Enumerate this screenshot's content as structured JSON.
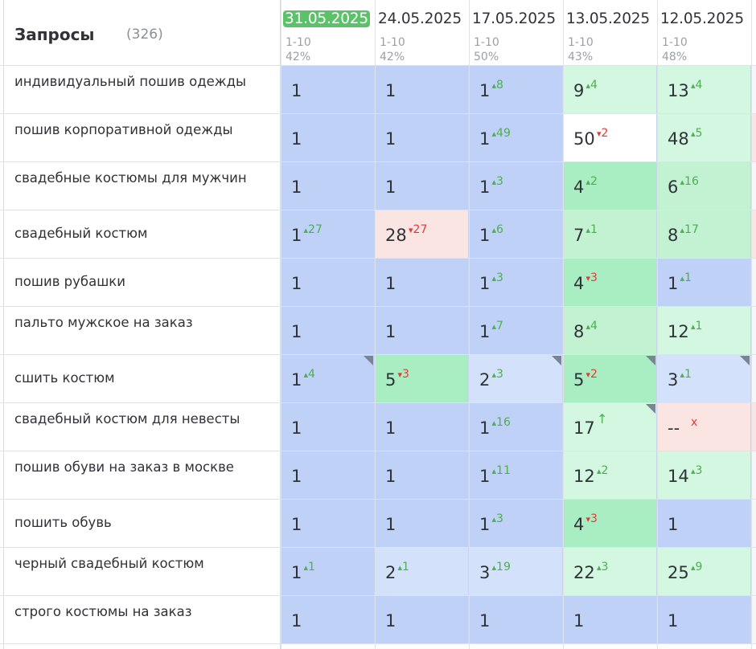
{
  "header": {
    "title": "Запросы",
    "count": "(326)",
    "columns": [
      {
        "date": "31.05.2025",
        "range": "1-10",
        "pct": "42%",
        "active": true
      },
      {
        "date": "24.05.2025",
        "range": "1-10",
        "pct": "42%",
        "active": false
      },
      {
        "date": "17.05.2025",
        "range": "1-10",
        "pct": "50%",
        "active": false
      },
      {
        "date": "13.05.2025",
        "range": "1-10",
        "pct": "43%",
        "active": false
      },
      {
        "date": "12.05.2025",
        "range": "1-10",
        "pct": "48%",
        "active": false
      }
    ]
  },
  "rows": [
    {
      "query": "индивидуальный пошив одежды",
      "cells": [
        {
          "pos": "1",
          "delta": "",
          "dir": "",
          "color": "blue"
        },
        {
          "pos": "1",
          "delta": "",
          "dir": "",
          "color": "blue"
        },
        {
          "pos": "1",
          "delta": "8",
          "dir": "up",
          "color": "blue"
        },
        {
          "pos": "9",
          "delta": "4",
          "dir": "up",
          "color": "lgreen"
        },
        {
          "pos": "13",
          "delta": "4",
          "dir": "up",
          "color": "lgreen"
        }
      ]
    },
    {
      "query": "пошив корпоративной одежды",
      "cells": [
        {
          "pos": "1",
          "delta": "",
          "dir": "",
          "color": "blue"
        },
        {
          "pos": "1",
          "delta": "",
          "dir": "",
          "color": "blue"
        },
        {
          "pos": "1",
          "delta": "49",
          "dir": "up",
          "color": "blue"
        },
        {
          "pos": "50",
          "delta": "2",
          "dir": "down",
          "color": "white"
        },
        {
          "pos": "48",
          "delta": "5",
          "dir": "up",
          "color": "lgreen"
        }
      ]
    },
    {
      "query": "свадебные костюмы для мужчин",
      "cells": [
        {
          "pos": "1",
          "delta": "",
          "dir": "",
          "color": "blue"
        },
        {
          "pos": "1",
          "delta": "",
          "dir": "",
          "color": "blue"
        },
        {
          "pos": "1",
          "delta": "3",
          "dir": "up",
          "color": "blue"
        },
        {
          "pos": "4",
          "delta": "2",
          "dir": "up",
          "color": "green"
        },
        {
          "pos": "6",
          "delta": "16",
          "dir": "up",
          "color": "mgreen"
        }
      ]
    },
    {
      "query": "свадебный костюм",
      "cells": [
        {
          "pos": "1",
          "delta": "27",
          "dir": "up",
          "color": "blue"
        },
        {
          "pos": "28",
          "delta": "27",
          "dir": "down",
          "color": "pink"
        },
        {
          "pos": "1",
          "delta": "6",
          "dir": "up",
          "color": "blue"
        },
        {
          "pos": "7",
          "delta": "1",
          "dir": "up",
          "color": "mgreen"
        },
        {
          "pos": "8",
          "delta": "17",
          "dir": "up",
          "color": "mgreen"
        }
      ]
    },
    {
      "query": "пошив рубашки",
      "cells": [
        {
          "pos": "1",
          "delta": "",
          "dir": "",
          "color": "blue"
        },
        {
          "pos": "1",
          "delta": "",
          "dir": "",
          "color": "blue"
        },
        {
          "pos": "1",
          "delta": "3",
          "dir": "up",
          "color": "blue"
        },
        {
          "pos": "4",
          "delta": "3",
          "dir": "down",
          "color": "green"
        },
        {
          "pos": "1",
          "delta": "1",
          "dir": "up",
          "color": "blue"
        }
      ]
    },
    {
      "query": "пальто мужское на заказ",
      "cells": [
        {
          "pos": "1",
          "delta": "",
          "dir": "",
          "color": "blue"
        },
        {
          "pos": "1",
          "delta": "",
          "dir": "",
          "color": "blue"
        },
        {
          "pos": "1",
          "delta": "7",
          "dir": "up",
          "color": "blue"
        },
        {
          "pos": "8",
          "delta": "4",
          "dir": "up",
          "color": "mgreen"
        },
        {
          "pos": "12",
          "delta": "1",
          "dir": "up",
          "color": "lgreen"
        }
      ]
    },
    {
      "query": "сшить костюм",
      "cells": [
        {
          "pos": "1",
          "delta": "4",
          "dir": "up",
          "color": "blue",
          "note": true
        },
        {
          "pos": "5",
          "delta": "3",
          "dir": "down",
          "color": "green"
        },
        {
          "pos": "2",
          "delta": "3",
          "dir": "up",
          "color": "lblue",
          "note": true
        },
        {
          "pos": "5",
          "delta": "2",
          "dir": "down",
          "color": "green",
          "note": true
        },
        {
          "pos": "3",
          "delta": "1",
          "dir": "up",
          "color": "lblue",
          "note": true
        }
      ]
    },
    {
      "query": "свадебный костюм для невесты",
      "cells": [
        {
          "pos": "1",
          "delta": "",
          "dir": "",
          "color": "blue"
        },
        {
          "pos": "1",
          "delta": "",
          "dir": "",
          "color": "blue"
        },
        {
          "pos": "1",
          "delta": "16",
          "dir": "up",
          "color": "blue"
        },
        {
          "pos": "17",
          "delta": "↑",
          "dir": "up",
          "color": "lgreen",
          "note": true
        },
        {
          "pos": "--",
          "delta": "x",
          "dir": "x",
          "color": "pink"
        }
      ]
    },
    {
      "query": "пошив обуви на заказ в москве",
      "cells": [
        {
          "pos": "1",
          "delta": "",
          "dir": "",
          "color": "blue"
        },
        {
          "pos": "1",
          "delta": "",
          "dir": "",
          "color": "blue"
        },
        {
          "pos": "1",
          "delta": "11",
          "dir": "up",
          "color": "blue"
        },
        {
          "pos": "12",
          "delta": "2",
          "dir": "up",
          "color": "lgreen"
        },
        {
          "pos": "14",
          "delta": "3",
          "dir": "up",
          "color": "lgreen"
        }
      ]
    },
    {
      "query": "пошить обувь",
      "cells": [
        {
          "pos": "1",
          "delta": "",
          "dir": "",
          "color": "blue"
        },
        {
          "pos": "1",
          "delta": "",
          "dir": "",
          "color": "blue"
        },
        {
          "pos": "1",
          "delta": "3",
          "dir": "up",
          "color": "blue"
        },
        {
          "pos": "4",
          "delta": "3",
          "dir": "down",
          "color": "green"
        },
        {
          "pos": "1",
          "delta": "",
          "dir": "",
          "color": "blue"
        }
      ]
    },
    {
      "query": "черный свадебный костюм",
      "cells": [
        {
          "pos": "1",
          "delta": "1",
          "dir": "up",
          "color": "blue"
        },
        {
          "pos": "2",
          "delta": "1",
          "dir": "up",
          "color": "lblue"
        },
        {
          "pos": "3",
          "delta": "19",
          "dir": "up",
          "color": "lblue"
        },
        {
          "pos": "22",
          "delta": "3",
          "dir": "up",
          "color": "lgreen"
        },
        {
          "pos": "25",
          "delta": "9",
          "dir": "up",
          "color": "lgreen"
        }
      ]
    },
    {
      "query": "строго костюмы на заказ",
      "cells": [
        {
          "pos": "1",
          "delta": "",
          "dir": "",
          "color": "blue"
        },
        {
          "pos": "1",
          "delta": "",
          "dir": "",
          "color": "blue"
        },
        {
          "pos": "1",
          "delta": "",
          "dir": "",
          "color": "blue"
        },
        {
          "pos": "1",
          "delta": "",
          "dir": "",
          "color": "blue"
        },
        {
          "pos": "1",
          "delta": "",
          "dir": "",
          "color": "blue"
        }
      ]
    }
  ],
  "colors": {
    "blue": "#bfd1f6",
    "lblue": "#d3e1fb",
    "green": "#a9eec2",
    "mgreen": "#c2f2d2",
    "lgreen": "#d3f7e1",
    "pink": "#fbe5e3",
    "white": "#ffffff",
    "up": "#4caf50",
    "down": "#e53935"
  }
}
